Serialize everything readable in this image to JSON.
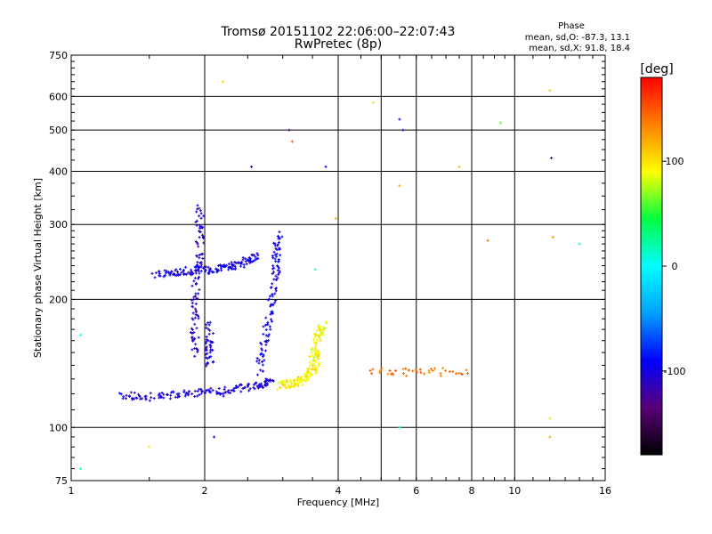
{
  "chart_data": {
    "type": "scatter",
    "title": "Tromsø 20151102 22:06:00–22:07:43",
    "subtitle": "RwPretec (8p)",
    "xlabel": "Frequency [MHz]",
    "ylabel": "Stationary phase Virtual Height [km]",
    "x_scale": "log",
    "y_scale": "log",
    "xlim": [
      1,
      16
    ],
    "ylim": [
      75,
      750
    ],
    "x_ticks": [
      1,
      2,
      4,
      6,
      8,
      10,
      16
    ],
    "x_gridlines": [
      2,
      4,
      5,
      6,
      8,
      10
    ],
    "y_ticks": [
      75,
      100,
      200,
      300,
      400,
      500,
      600,
      750
    ],
    "grid": true,
    "legend": {
      "heading": "Phase",
      "lines": [
        "mean, sd,O: -87.3, 13.1",
        "mean, sd,X:  91.8, 18.4"
      ],
      "position": "top-right"
    },
    "colorbar": {
      "label": "[deg]",
      "range": [
        -180,
        180
      ],
      "ticks": [
        100,
        0,
        -100
      ],
      "colormap": [
        "#000000",
        "#5a0078",
        "#0000ff",
        "#00a0ff",
        "#00ffff",
        "#00ff40",
        "#ffff00",
        "#ff8000",
        "#ff0000"
      ]
    },
    "traces": [
      {
        "x": [
          1.3,
          1.4,
          1.55,
          1.7,
          1.85,
          2.0,
          2.15,
          2.3,
          2.45,
          2.6,
          2.75,
          2.85
        ],
        "y": [
          119,
          118,
          118,
          119,
          120,
          121,
          121,
          122,
          124,
          125,
          127,
          130
        ],
        "phase": -105
      },
      {
        "x": [
          1.55,
          1.65,
          1.75,
          1.85,
          1.95,
          2.05,
          2.15,
          2.25,
          2.35,
          2.45,
          2.55,
          2.65
        ],
        "y": [
          230,
          231,
          232,
          233,
          234,
          235,
          236,
          238,
          240,
          244,
          248,
          255
        ],
        "phase": -100
      },
      {
        "x": [
          1.9,
          1.9,
          1.9,
          1.9,
          1.95,
          1.95,
          1.95,
          1.95
        ],
        "y": [
          150,
          165,
          185,
          205,
          240,
          270,
          300,
          330
        ],
        "phase": -110
      },
      {
        "x": [
          2.05,
          2.05,
          2.05,
          2.05
        ],
        "y": [
          140,
          150,
          160,
          175
        ],
        "phase": -105
      },
      {
        "x": [
          2.65,
          2.7,
          2.75,
          2.8,
          2.85,
          2.9,
          2.9,
          2.9,
          2.95
        ],
        "y": [
          135,
          150,
          165,
          185,
          205,
          225,
          245,
          265,
          285
        ],
        "phase": -100
      },
      {
        "x": [
          2.95,
          3.05,
          3.15,
          3.25,
          3.35,
          3.45,
          3.5,
          3.55,
          3.6
        ],
        "y": [
          125,
          126,
          127,
          128,
          130,
          133,
          137,
          142,
          150
        ],
        "phase": 95
      },
      {
        "x": [
          3.5,
          3.55,
          3.6,
          3.65,
          3.7
        ],
        "y": [
          145,
          155,
          165,
          170,
          175
        ],
        "phase": 90
      },
      {
        "x": [
          4.7,
          5.6,
          6.5,
          8.0
        ],
        "y": [
          135,
          135,
          135,
          135
        ],
        "phase": 140
      }
    ],
    "scatter_points": [
      {
        "x": 4.8,
        "y": 580,
        "phase": 100
      },
      {
        "x": 5.5,
        "y": 530,
        "phase": -100
      },
      {
        "x": 5.6,
        "y": 500,
        "phase": -110
      },
      {
        "x": 7.5,
        "y": 410,
        "phase": 120
      },
      {
        "x": 9.3,
        "y": 520,
        "phase": 60
      },
      {
        "x": 12.0,
        "y": 620,
        "phase": 110
      },
      {
        "x": 12.1,
        "y": 430,
        "phase": -110
      },
      {
        "x": 12.2,
        "y": 280,
        "phase": 130
      },
      {
        "x": 14.0,
        "y": 270,
        "phase": 10
      },
      {
        "x": 3.1,
        "y": 500,
        "phase": -130
      },
      {
        "x": 3.15,
        "y": 470,
        "phase": 150
      },
      {
        "x": 2.2,
        "y": 650,
        "phase": 110
      },
      {
        "x": 2.55,
        "y": 410,
        "phase": -105
      },
      {
        "x": 3.55,
        "y": 235,
        "phase": 15
      },
      {
        "x": 3.75,
        "y": 410,
        "phase": -100
      },
      {
        "x": 3.95,
        "y": 310,
        "phase": 120
      },
      {
        "x": 1.05,
        "y": 80,
        "phase": 10
      },
      {
        "x": 1.05,
        "y": 165,
        "phase": 0
      },
      {
        "x": 1.5,
        "y": 90,
        "phase": 100
      },
      {
        "x": 2.1,
        "y": 95,
        "phase": -110
      },
      {
        "x": 12.0,
        "y": 95,
        "phase": 120
      },
      {
        "x": 12.0,
        "y": 105,
        "phase": 100
      },
      {
        "x": 5.5,
        "y": 100,
        "phase": 15
      },
      {
        "x": 8.7,
        "y": 275,
        "phase": 140
      },
      {
        "x": 5.5,
        "y": 370,
        "phase": 120
      }
    ]
  }
}
